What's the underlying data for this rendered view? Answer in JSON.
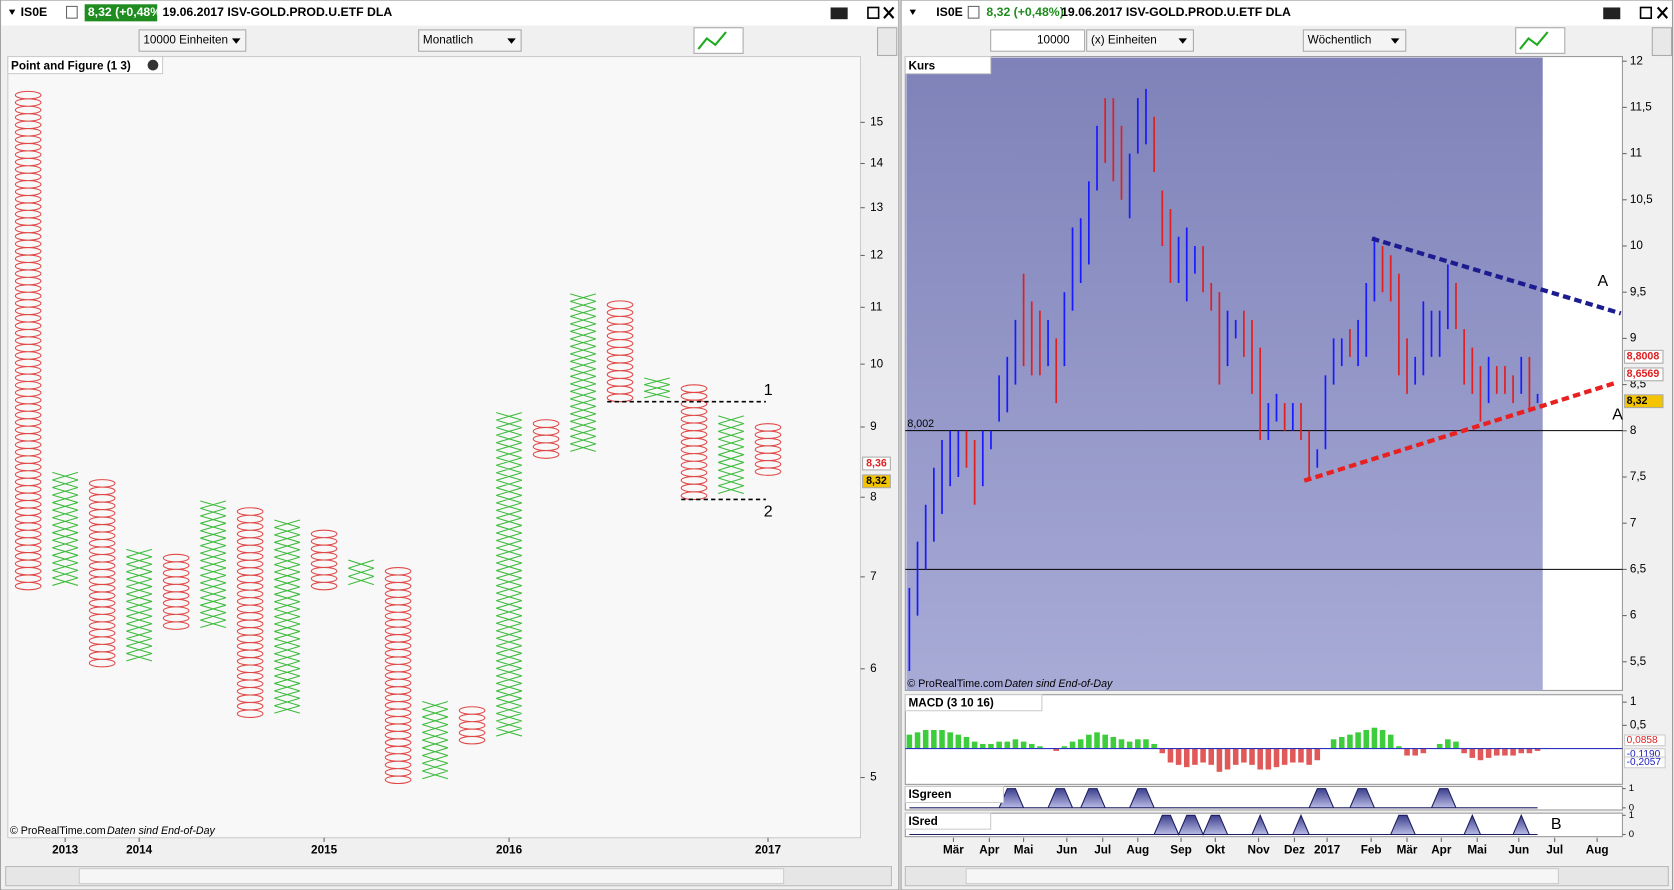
{
  "windows": [
    {
      "symbol": "IS0E",
      "quote": "8,32 (+0,48%)",
      "info": "19.06.2017 ISV-GOLD.PROD.U.ETF DLA",
      "units": "10000 Einheiten",
      "period": "Monatlich"
    },
    {
      "symbol": "IS0E",
      "quote": "8,32 (+0,48%)",
      "info": "19.06.2017 ISV-GOLD.PROD.U.ETF DLA",
      "quantity": "10000",
      "units": "(x) Einheiten",
      "period": "Wöchentlich"
    }
  ],
  "chart_data": [
    {
      "type": "point_and_figure",
      "title": "Point and Figure (1 3)",
      "source": "© ProRealTime.com",
      "note": "Daten sind End-of-Day",
      "log_scale": true,
      "ylim": [
        4.52,
        16.75
      ],
      "yticks": [
        5,
        6,
        7,
        8,
        9,
        10,
        11,
        12,
        13,
        14,
        15
      ],
      "xlim": [
        -0.55,
        22.5
      ],
      "xticks": [
        {
          "value": 1,
          "label": "2013"
        },
        {
          "value": 3,
          "label": "2014"
        },
        {
          "value": 8,
          "label": "2015"
        },
        {
          "value": 13,
          "label": "2016"
        },
        {
          "value": 20,
          "label": "2017"
        }
      ],
      "colors": {
        "X": "#3dbb3d",
        "O": "#e04848"
      },
      "symbols": [
        "O",
        "X",
        "O",
        "X",
        "O",
        "X",
        "O",
        "X",
        "O",
        "X",
        "O",
        "X",
        "O",
        "X",
        "O",
        "X",
        "O",
        "X",
        "O",
        "X",
        "O"
      ],
      "highs": [
        15.8,
        8.34,
        8.24,
        7.33,
        7.27,
        7.95,
        7.86,
        7.7,
        7.57,
        7.2,
        7.11,
        5.68,
        5.63,
        9.22,
        9.11,
        11.25,
        11.12,
        9.77,
        9.66,
        9.17,
        9.05
      ],
      "lows": [
        6.85,
        6.9,
        6.02,
        6.08,
        6.41,
        6.43,
        5.53,
        5.57,
        6.85,
        6.91,
        4.95,
        4.99,
        5.29,
        5.36,
        8.54,
        8.64,
        9.39,
        9.45,
        7.97,
        8.05,
        8.3
      ],
      "levels": [
        {
          "value": 9.39,
          "from": 16,
          "to": 20,
          "label": "1"
        },
        {
          "value": 7.97,
          "from": 18,
          "to": 20,
          "label": "2"
        }
      ],
      "price_tags": [
        {
          "value": 8.36,
          "label": "8,36",
          "color": "#ffffff"
        },
        {
          "value": 8.32,
          "label": "8,32",
          "color": "#f5c400"
        }
      ]
    },
    {
      "type": "ohlc",
      "title": "Kurs",
      "source": "© ProRealTime.com",
      "note": "Daten sind End-of-Day",
      "ylim": [
        5.19,
        12.05
      ],
      "yticks": [
        {
          "value": 5.5,
          "label": "5,5"
        },
        6,
        {
          "value": 6.5,
          "label": "6,5"
        },
        7,
        {
          "value": 7.5,
          "label": "7,5"
        },
        8,
        {
          "value": 8.5,
          "label": "8,5"
        },
        9,
        {
          "value": 9.5,
          "label": "9,5"
        },
        10,
        {
          "value": 10.5,
          "label": "10,5"
        },
        11,
        {
          "value": 11.5,
          "label": "11,5"
        },
        12
      ],
      "xlim": [
        -0.5,
        87.4
      ],
      "xticks": [
        {
          "value": 5.4,
          "label": "Mär"
        },
        {
          "value": 9.8,
          "label": "Apr"
        },
        {
          "value": 14,
          "label": "Mai"
        },
        {
          "value": 19.3,
          "label": "Jun"
        },
        {
          "value": 23.7,
          "label": "Jul"
        },
        {
          "value": 28,
          "label": "Aug"
        },
        {
          "value": 33.3,
          "label": "Sep"
        },
        {
          "value": 37.5,
          "label": "Okt"
        },
        {
          "value": 42.8,
          "label": "Nov"
        },
        {
          "value": 47.2,
          "label": "Dez"
        },
        {
          "value": 51.2,
          "label": "2017"
        },
        {
          "value": 56.6,
          "label": "Feb"
        },
        {
          "value": 61,
          "label": "Mär"
        },
        {
          "value": 65.2,
          "label": "Apr"
        },
        {
          "value": 69.6,
          "label": "Mai"
        },
        {
          "value": 74.7,
          "label": "Jun"
        },
        {
          "value": 79.1,
          "label": "Jul"
        },
        {
          "value": 84.3,
          "label": "Aug"
        }
      ],
      "up_color": "#1a1aff",
      "down_color": "#e02020",
      "highs": [
        6.3,
        6.8,
        7.2,
        7.6,
        7.9,
        8.0,
        8.0,
        8.0,
        7.9,
        8.0,
        8.0,
        8.6,
        8.8,
        9.2,
        9.7,
        9.4,
        9.3,
        9.2,
        9.0,
        9.5,
        10.2,
        10.3,
        10.7,
        11.3,
        11.6,
        11.6,
        11.3,
        11.0,
        11.6,
        11.7,
        11.4,
        10.6,
        10.4,
        10.1,
        10.2,
        10.0,
        10.0,
        9.6,
        9.5,
        9.3,
        9.2,
        9.3,
        9.2,
        8.9,
        8.3,
        8.4,
        8.3,
        8.3,
        8.3,
        8.0,
        7.8,
        8.6,
        9.0,
        9.0,
        9.1,
        9.2,
        9.6,
        10.1,
        10.0,
        9.9,
        9.7,
        9.0,
        8.8,
        9.4,
        9.3,
        9.3,
        9.8,
        9.6,
        9.1,
        8.9,
        8.7,
        8.8,
        8.7,
        8.7,
        8.6,
        8.8,
        8.8,
        8.4
      ],
      "lows": [
        5.4,
        6.0,
        6.5,
        6.8,
        7.1,
        7.4,
        7.5,
        7.6,
        7.2,
        7.4,
        7.8,
        8.1,
        8.2,
        8.5,
        8.7,
        8.6,
        8.6,
        8.7,
        8.3,
        8.7,
        9.3,
        9.6,
        9.8,
        10.6,
        10.9,
        10.7,
        10.5,
        10.3,
        11.0,
        11.1,
        10.8,
        10.0,
        9.6,
        9.6,
        9.4,
        9.7,
        9.5,
        9.3,
        8.5,
        8.7,
        9.0,
        8.8,
        8.4,
        7.9,
        7.9,
        8.1,
        8.0,
        8.0,
        7.9,
        7.5,
        7.6,
        7.8,
        8.5,
        8.7,
        8.8,
        8.7,
        8.8,
        9.4,
        9.5,
        9.4,
        8.6,
        8.4,
        8.5,
        8.6,
        8.8,
        8.8,
        9.1,
        9.1,
        8.5,
        8.4,
        8.1,
        8.3,
        8.4,
        8.4,
        8.3,
        8.4,
        8.2,
        8.3
      ],
      "rising": [
        true,
        true,
        true,
        true,
        true,
        true,
        true,
        false,
        false,
        true,
        true,
        true,
        true,
        true,
        false,
        false,
        false,
        true,
        false,
        true,
        true,
        true,
        true,
        true,
        false,
        false,
        false,
        true,
        true,
        true,
        false,
        false,
        false,
        true,
        true,
        true,
        false,
        false,
        false,
        true,
        true,
        false,
        false,
        false,
        true,
        true,
        false,
        true,
        false,
        false,
        true,
        true,
        true,
        true,
        false,
        true,
        true,
        true,
        false,
        false,
        false,
        false,
        true,
        true,
        true,
        true,
        true,
        false,
        false,
        false,
        false,
        true,
        false,
        false,
        false,
        true,
        false,
        true
      ],
      "hlines": [
        {
          "value": 8.002,
          "label": "8,002"
        },
        {
          "value": 6.5
        }
      ],
      "trendlines": [
        {
          "color": "#1c1c90",
          "x": [
            56.7,
            87.2
          ],
          "y": [
            10.08,
            9.27
          ]
        },
        {
          "color": "#e82020",
          "x": [
            48.4,
            86.6
          ],
          "y": [
            7.46,
            8.52
          ]
        }
      ],
      "annotations": [
        {
          "x": 85.4,
          "y": 9.61,
          "text": "A"
        },
        {
          "x": 87.2,
          "y": 8.17,
          "text": "A"
        }
      ],
      "price_tags": [
        {
          "value": 8.8008,
          "label": "8,8008",
          "color": "#e02020"
        },
        {
          "value": 8.6569,
          "label": "8,6569",
          "color": "#e02020"
        },
        {
          "value": 8.32,
          "label": "8,32",
          "color": "#f5c400"
        }
      ]
    },
    {
      "type": "bar",
      "title": "MACD (3 10 16)",
      "ylim": [
        -0.77,
        1.16
      ],
      "yticks": [
        1,
        {
          "value": 0.5,
          "label": "0,5"
        }
      ],
      "values": [
        0.3,
        0.35,
        0.4,
        0.4,
        0.4,
        0.35,
        0.3,
        0.25,
        0.15,
        0.1,
        0.1,
        0.15,
        0.15,
        0.2,
        0.15,
        0.1,
        0.05,
        0.0,
        -0.05,
        0.05,
        0.15,
        0.2,
        0.3,
        0.35,
        0.3,
        0.25,
        0.2,
        0.15,
        0.2,
        0.2,
        0.1,
        -0.1,
        -0.3,
        -0.35,
        -0.4,
        -0.35,
        -0.3,
        -0.35,
        -0.5,
        -0.45,
        -0.35,
        -0.3,
        -0.35,
        -0.45,
        -0.45,
        -0.4,
        -0.35,
        -0.3,
        -0.3,
        -0.35,
        -0.25,
        0.0,
        0.2,
        0.25,
        0.3,
        0.35,
        0.4,
        0.45,
        0.4,
        0.3,
        0.05,
        -0.15,
        -0.15,
        -0.1,
        0.0,
        0.1,
        0.2,
        0.15,
        -0.1,
        -0.2,
        -0.25,
        -0.2,
        -0.15,
        -0.15,
        -0.15,
        -0.1,
        -0.1,
        -0.05
      ],
      "up_color": "#3ccc3c",
      "down_color": "#e05858",
      "value_tags": [
        {
          "value": 0.0858,
          "label": "0,0858"
        },
        {
          "value": -0.119,
          "label": "-0,1190"
        },
        {
          "value": -0.2057,
          "label": "-0,2057"
        }
      ]
    },
    {
      "type": "signal",
      "title": "ISgreen",
      "ylim": [
        0,
        1
      ],
      "yticks": [
        0,
        1
      ],
      "values": [
        0,
        0,
        0,
        0,
        0,
        0,
        0,
        0,
        0,
        0,
        0,
        0,
        1,
        1,
        0,
        0,
        0,
        0,
        1,
        1,
        0,
        0,
        1,
        1,
        0,
        0,
        0,
        0,
        1,
        1,
        0,
        0,
        0,
        0,
        0,
        0,
        0,
        0,
        0,
        0,
        0,
        0,
        0,
        0,
        0,
        0,
        0,
        0,
        0,
        0,
        1,
        1,
        0,
        0,
        0,
        1,
        1,
        0,
        0,
        0,
        0,
        0,
        0,
        0,
        0,
        1,
        1,
        0,
        0,
        0,
        0,
        0,
        0,
        0,
        0,
        0,
        0,
        0
      ]
    },
    {
      "type": "signal",
      "title": "ISred",
      "ylim": [
        0,
        1
      ],
      "yticks": [
        0,
        1
      ],
      "annotation": "B",
      "values": [
        0,
        0,
        0,
        0,
        0,
        0,
        0,
        0,
        0,
        0,
        0,
        0,
        0,
        0,
        0,
        0,
        0,
        0,
        0,
        0,
        0,
        0,
        0,
        0,
        0,
        0,
        0,
        0,
        0,
        0,
        0,
        1,
        1,
        0,
        1,
        1,
        0,
        1,
        1,
        0,
        0,
        0,
        0,
        1,
        0,
        0,
        0,
        0,
        1,
        0,
        0,
        0,
        0,
        0,
        0,
        0,
        0,
        0,
        0,
        0,
        1,
        1,
        0,
        0,
        0,
        0,
        0,
        0,
        0,
        1,
        0,
        0,
        0,
        0,
        0,
        1,
        0,
        0
      ]
    }
  ]
}
